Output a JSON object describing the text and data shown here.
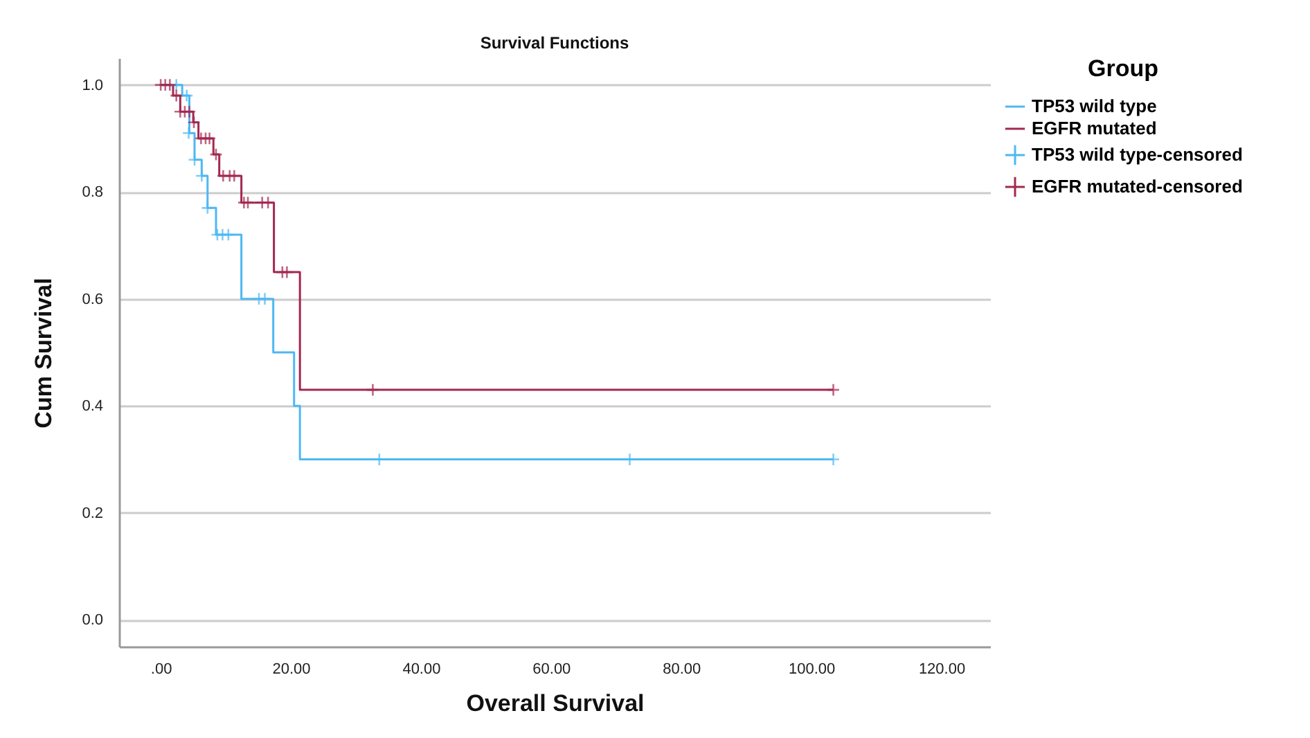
{
  "chart_data": {
    "type": "step",
    "title": "Survival Functions",
    "xlabel": "Overall Survival",
    "ylabel": "Cum Survival",
    "legend_title": "Group",
    "xlim": [
      -6.4,
      127.5
    ],
    "ylim": [
      -0.05,
      1.05
    ],
    "xticks": [
      {
        "value": 0,
        "label": ".00"
      },
      {
        "value": 20,
        "label": "20.00"
      },
      {
        "value": 40,
        "label": "40.00"
      },
      {
        "value": 60,
        "label": "60.00"
      },
      {
        "value": 80,
        "label": "80.00"
      },
      {
        "value": 100,
        "label": "100.00"
      },
      {
        "value": 120,
        "label": "120.00"
      }
    ],
    "yticks": [
      {
        "value": 0,
        "label": "0.0"
      },
      {
        "value": 0.2,
        "label": "0.2"
      },
      {
        "value": 0.4,
        "label": "0.4"
      },
      {
        "value": 0.6,
        "label": "0.6"
      },
      {
        "value": 0.8,
        "label": "0.8"
      },
      {
        "value": 1,
        "label": "1.0"
      }
    ],
    "grid": "y",
    "legend": "top right",
    "line_style": "solid",
    "series": [
      {
        "name": "TP53 wild type",
        "type": "step",
        "color": "#4db8f4",
        "marker": "none",
        "x": [
          0,
          3.3,
          4.4,
          5.2,
          6.3,
          7.2,
          8.5,
          12.4,
          17.3,
          20.5,
          21.4,
          103.4
        ],
        "values": [
          1,
          0.98,
          0.91,
          0.86,
          0.83,
          0.77,
          0.72,
          0.6,
          0.5,
          0.4,
          0.3,
          0.3
        ]
      },
      {
        "name": "EGFR mutated",
        "type": "step",
        "color": "#a3284f",
        "marker": "none",
        "x": [
          0,
          1.9,
          3.0,
          5.0,
          5.8,
          8.1,
          9.0,
          12.4,
          17.4,
          21.4,
          103.4
        ],
        "values": [
          1,
          0.98,
          0.95,
          0.93,
          0.9,
          0.87,
          0.83,
          0.78,
          0.65,
          0.43,
          0.43
        ]
      },
      {
        "name": "TP53 wild type-censored",
        "type": "scatter",
        "color": "#4db8f4",
        "marker": "cross",
        "x": [
          2.4,
          4.0,
          4.3,
          5.2,
          6.3,
          7.2,
          8.7,
          9.5,
          10.4,
          15.1,
          16.0,
          33.6,
          72.1,
          103.4
        ],
        "values": [
          1,
          0.98,
          0.91,
          0.86,
          0.83,
          0.77,
          0.72,
          0.72,
          0.72,
          0.6,
          0.6,
          0.3,
          0.3,
          0.3
        ]
      },
      {
        "name": "EGFR mutated-censored",
        "type": "scatter",
        "color": "#a3284f",
        "marker": "cross",
        "x": [
          0,
          0.7,
          1.4,
          2.4,
          3.0,
          3.7,
          4.4,
          5.1,
          6.2,
          6.9,
          7.5,
          8.5,
          9.6,
          10.6,
          11.3,
          12.8,
          13.4,
          15.6,
          16.5,
          18.7,
          19.4,
          32.6,
          103.4
        ],
        "values": [
          1,
          1,
          1,
          0.98,
          0.95,
          0.95,
          0.95,
          0.93,
          0.9,
          0.9,
          0.9,
          0.87,
          0.83,
          0.83,
          0.83,
          0.78,
          0.78,
          0.78,
          0.78,
          0.65,
          0.65,
          0.43,
          0.43
        ]
      }
    ]
  }
}
